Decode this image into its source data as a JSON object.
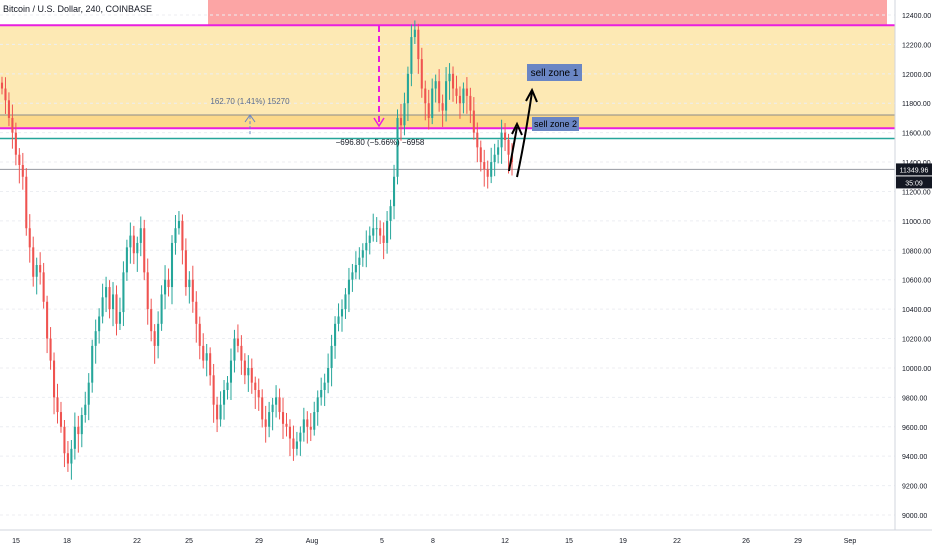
{
  "header": {
    "title": "Bitcoin / U.S. Dollar, 240, COINBASE"
  },
  "colors": {
    "up": "#26a69a",
    "down": "#ef5350",
    "zone_fill": "#fde9b4",
    "zone_top_fill": "#fca5a5",
    "magenta": "#e91ee0",
    "teal_line": "#26a69a",
    "gray_line": "#b2b5be",
    "callout_bg": "#6a86c4",
    "price_label_bg": "#131722",
    "grid": "#eceef2"
  },
  "chart_data": {
    "type": "candlestick",
    "symbol": "Bitcoin / U.S. Dollar",
    "interval": "240",
    "exchange": "COINBASE",
    "ylim": [
      8950,
      12450
    ],
    "y_ticks": [
      "9000.00",
      "9200.00",
      "9400.00",
      "9600.00",
      "9800.00",
      "10000.00",
      "10200.00",
      "10400.00",
      "10600.00",
      "10800.00",
      "11000.00",
      "11200.00",
      "11400.00",
      "11600.00",
      "11800.00",
      "12000.00",
      "12200.00",
      "12400.00"
    ],
    "x_ticks": [
      "15",
      "18",
      "22",
      "25",
      "29",
      "Aug",
      "5",
      "8",
      "12",
      "15",
      "19",
      "22",
      "26",
      "29",
      "Sep"
    ],
    "last_price": "11349.96",
    "countdown": "35:09",
    "candle_tops": [
      11900,
      11820,
      11700,
      11600,
      11450,
      11380,
      11300,
      10950,
      10820,
      10620,
      10700,
      10650,
      10450,
      10200,
      10050,
      9800,
      9700,
      9600,
      9420,
      9350,
      9450,
      9600,
      9550,
      9680,
      9750,
      9900,
      10150,
      10250,
      10350,
      10480,
      10550,
      10400,
      10500,
      10300,
      10380,
      10650,
      10820,
      10900,
      10780,
      10850,
      10950,
      10650,
      10400,
      10250,
      10150,
      10300,
      10500,
      10600,
      10550,
      10850,
      10950,
      11000,
      10800,
      10550,
      10600,
      10450,
      10300,
      10150,
      10050,
      10100,
      9950,
      9750,
      9650,
      9750,
      9850,
      9900,
      10050,
      10200,
      10150,
      10050,
      9950,
      10000,
      9900,
      9850,
      9800,
      9650,
      9600,
      9700,
      9750,
      9800,
      9700,
      9620,
      9600,
      9520,
      9450,
      9500,
      9560,
      9650,
      9600,
      9580,
      9700,
      9800,
      9850,
      9900,
      10000,
      10150,
      10300,
      10350,
      10400,
      10500,
      10600,
      10650,
      10700,
      10750,
      10800,
      10850,
      10900,
      10950,
      10950,
      10900,
      10850,
      11000,
      11100,
      11300,
      11700,
      11650,
      11800,
      12000,
      12250,
      12300,
      12100,
      11900,
      11800,
      11700,
      11900,
      11950,
      11800,
      11750,
      11950,
      12000,
      11900,
      11850,
      11800,
      11900,
      11850,
      11750,
      11600,
      11500,
      11400,
      11350,
      11300,
      11400,
      11450,
      11500,
      11600,
      11550,
      11450,
      11400
    ],
    "annotations": {
      "measure_label": "162.70 (1.41%) 15270",
      "range_label": "−696.80 (−5.66%) −6958",
      "callout_1": "sell zone 1",
      "callout_2": "sell zone 2"
    },
    "levels": {
      "zone_top": 12330,
      "zone_bottom": 11720,
      "teal_top": 11720,
      "magenta_mid": 11630,
      "teal_low": 11560,
      "current": 11350,
      "measure_from": 11590,
      "measure_to": 11720
    },
    "grid": true
  }
}
